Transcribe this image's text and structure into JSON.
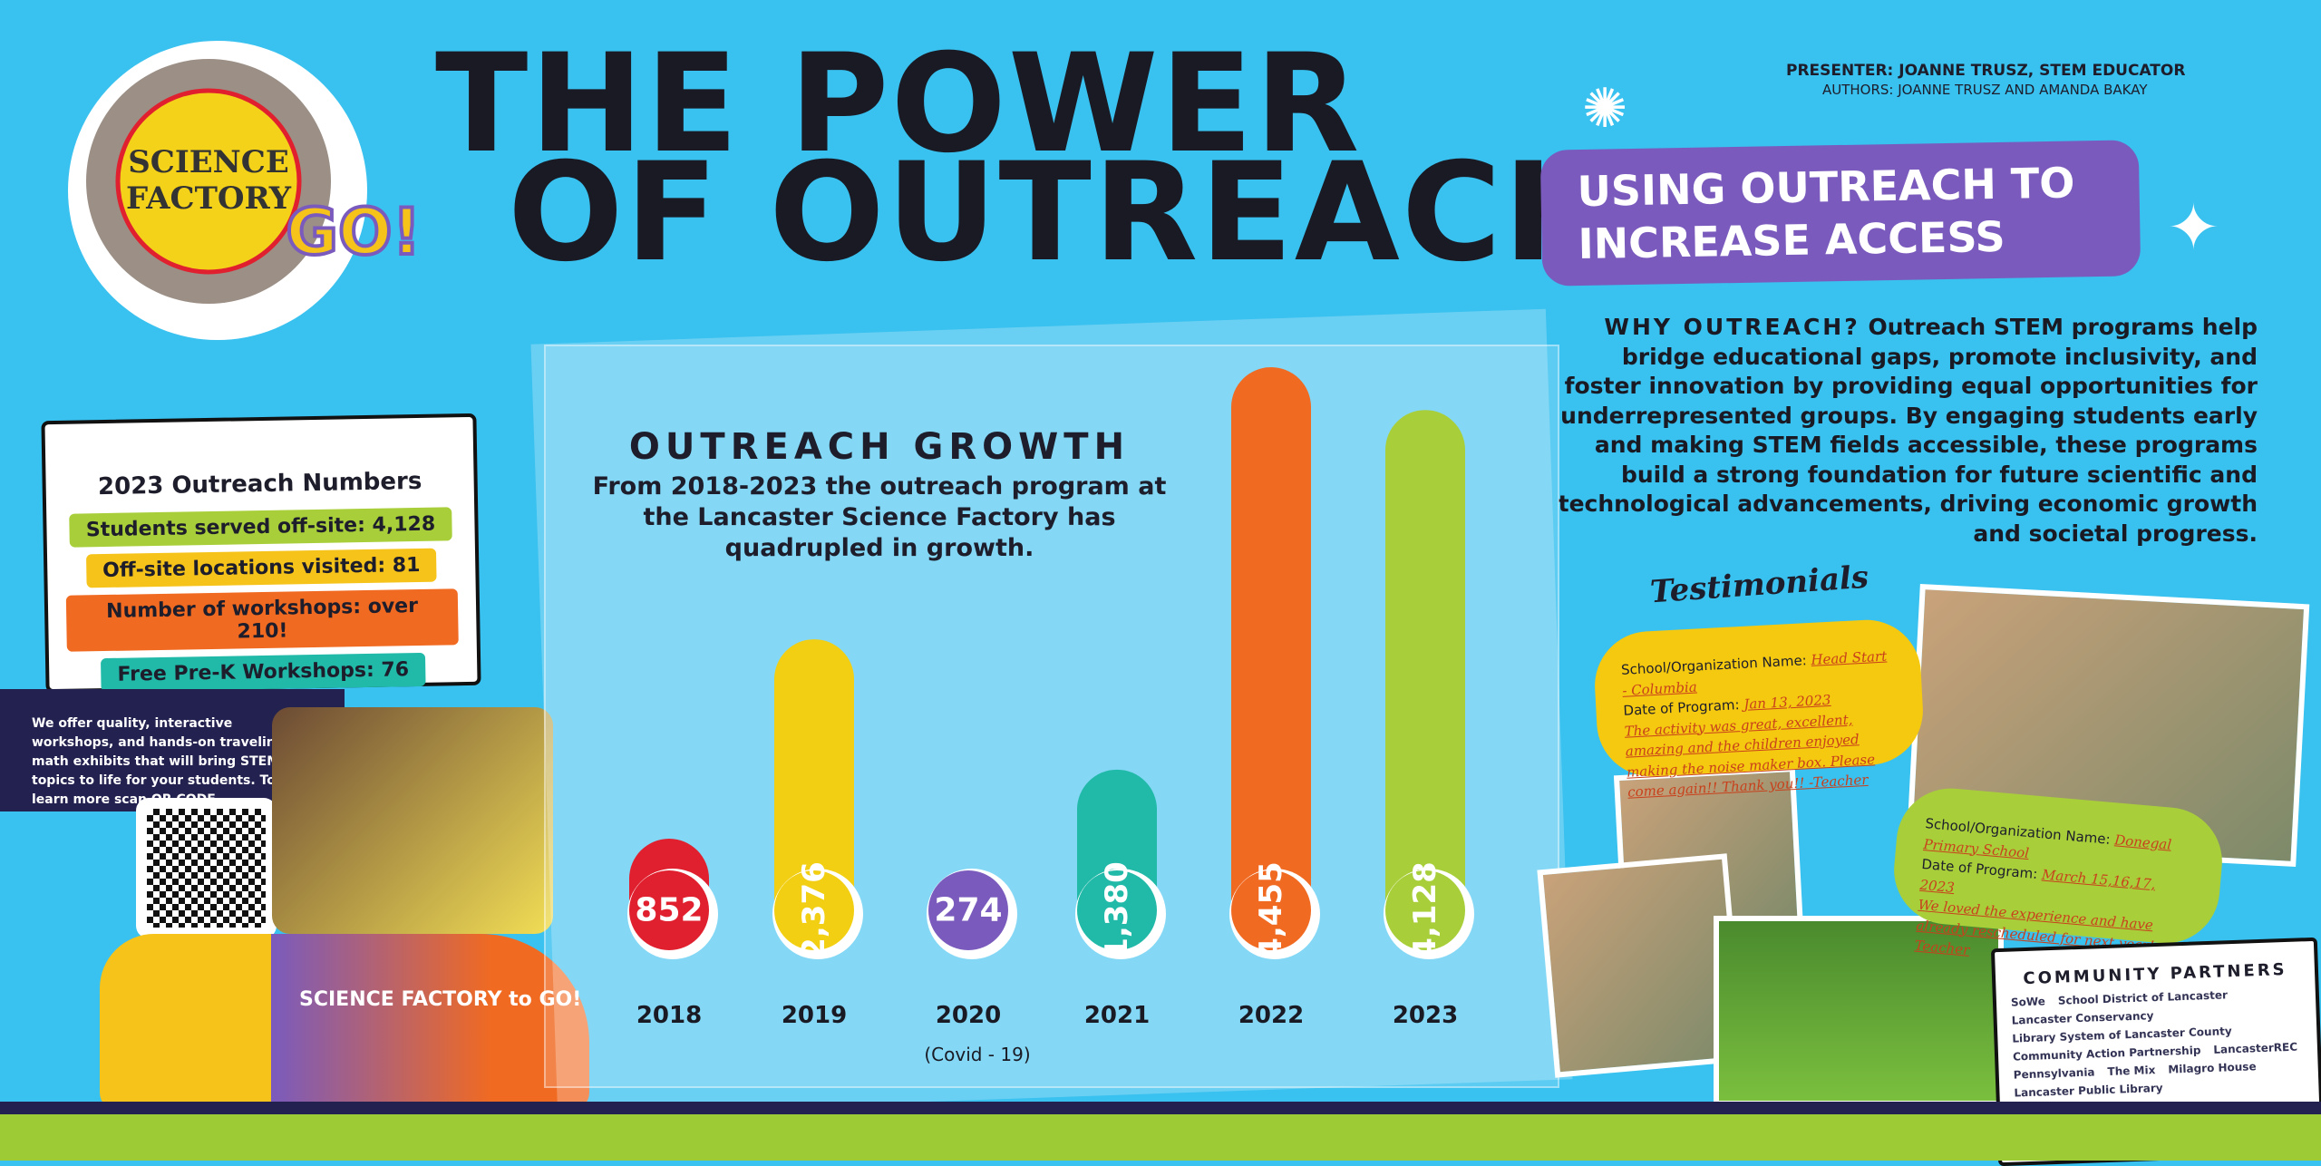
{
  "header": {
    "title_line1": "THE POWER",
    "title_line2": "OF OUTREACH:",
    "subtitle": "USING OUTREACH TO INCREASE ACCESS",
    "presenter": "PRESENTER: JOANNE TRUSZ, STEM EDUCATOR",
    "authors": "AUTHORS: JOANNE TRUSZ AND AMANDA BAKAY"
  },
  "logo": {
    "text": "LANCASTER SCIENCE FACTORY to GO!"
  },
  "why": {
    "heading": "WHY OUTREACH?",
    "body": "Outreach STEM programs help bridge educational gaps, promote inclusivity, and foster innovation by providing equal opportunities for underrepresented groups. By engaging students early and making STEM fields accessible, these programs build a strong foundation for future scientific and technological advancements, driving economic growth and societal progress."
  },
  "stats": {
    "title": "2023 Outreach Numbers",
    "items": [
      {
        "label": "Students served off-site: 4,128",
        "color": "#a8cf3a"
      },
      {
        "label": "Off-site locations visited: 81",
        "color": "#f5c31a"
      },
      {
        "label": "Number of workshops: over 210!",
        "color": "#f06a22"
      },
      {
        "label": "Free Pre-K Workshops: 76",
        "color": "#21b9a8"
      }
    ]
  },
  "offer": "We offer quality, interactive workshops, and hands-on traveling math exhibits that will bring STEM topics to life for your students. To learn more scan QR CODE.",
  "chart_data": {
    "type": "bar",
    "title": "OUTREACH GROWTH",
    "subtitle": "From 2018-2023 the outreach program at the Lancaster Science Factory has quadrupled in growth.",
    "categories": [
      "2018",
      "2019",
      "2020",
      "2021",
      "2022",
      "2023"
    ],
    "values": [
      852,
      2376,
      274,
      1380,
      4455,
      4128
    ],
    "data_labels": [
      "852",
      "2,376",
      "274",
      "1,380",
      "4,455",
      "4,128"
    ],
    "colors": [
      "#e0202e",
      "#f2cf12",
      "#7a5bbd",
      "#21b9a8",
      "#f06a22",
      "#a8cf3a"
    ],
    "annotations": [
      {
        "category": "2020",
        "text": "(Covid - 19)"
      }
    ],
    "xlabel": "",
    "ylabel": "",
    "grid": false
  },
  "testimonials": {
    "title": "Testimonials",
    "items": [
      {
        "org_label": "School/Organization Name:",
        "org": "Head Start - Columbia",
        "date_label": "Date of Program:",
        "date": "Jan 13, 2023",
        "quote": "The activity was great, excellent, amazing and the children enjoyed making the noise maker box. Please come again!! Thank you!! -Teacher"
      },
      {
        "org_label": "School/Organization Name:",
        "org": "Donegal Primary School",
        "date_label": "Date of Program:",
        "date": "March 15,16,17, 2023",
        "quote": "We loved the experience and have already rescheduled for next year! -Teacher"
      }
    ]
  },
  "partners": {
    "title": "COMMUNITY PARTNERS",
    "items": [
      "SoWe",
      "School District of Lancaster",
      "Lancaster Conservancy",
      "Library System of Lancaster County",
      "Community Action Partnership",
      "LancasterREC",
      "Pennsylvania",
      "The Mix",
      "Milagro House",
      "Lancaster Public Library"
    ]
  },
  "van": {
    "text": "SCIENCE FACTORY to GO!"
  }
}
